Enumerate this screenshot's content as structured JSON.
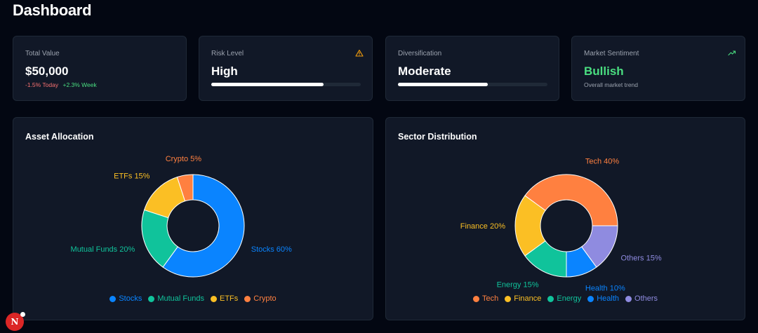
{
  "page": {
    "title": "Dashboard"
  },
  "stats": {
    "total_value": {
      "label": "Total Value",
      "value": "$50,000",
      "today": "-1.5% Today",
      "week": "+2.3% Week"
    },
    "risk": {
      "label": "Risk Level",
      "value": "High",
      "progress": 0.75,
      "icon": "warning-icon"
    },
    "diversification": {
      "label": "Diversification",
      "value": "Moderate",
      "progress": 0.6
    },
    "sentiment": {
      "label": "Market Sentiment",
      "value": "Bullish",
      "sub": "Overall market trend",
      "icon": "trending-up-icon"
    }
  },
  "colors": {
    "blue": "#0a84ff",
    "green": "#10c39b",
    "yellow": "#fbbf24",
    "orange": "#ff8040",
    "purple": "#8f8be0",
    "warning": "#f59e0b",
    "bullish": "#4ade80"
  },
  "chart_data": [
    {
      "type": "pie",
      "title": "Asset Allocation",
      "donut": true,
      "categories": [
        "Stocks",
        "Mutual Funds",
        "ETFs",
        "Crypto"
      ],
      "values": [
        60,
        20,
        15,
        5
      ],
      "labels": [
        "Stocks 60%",
        "Mutual Funds 20%",
        "ETFs 15%",
        "Crypto 5%"
      ],
      "colors": [
        "#0a84ff",
        "#10c39b",
        "#fbbf24",
        "#ff8040"
      ],
      "legend": "bottom"
    },
    {
      "type": "pie",
      "title": "Sector Distribution",
      "donut": true,
      "categories": [
        "Tech",
        "Finance",
        "Energy",
        "Health",
        "Others"
      ],
      "values": [
        40,
        20,
        15,
        10,
        15
      ],
      "labels": [
        "Tech 40%",
        "Finance 20%",
        "Energy 15%",
        "Health 10%",
        "Others 15%"
      ],
      "colors": [
        "#ff8040",
        "#fbbf24",
        "#10c39b",
        "#0a84ff",
        "#8f8be0"
      ],
      "legend": "bottom"
    }
  ],
  "badge": {
    "letter": "N"
  }
}
